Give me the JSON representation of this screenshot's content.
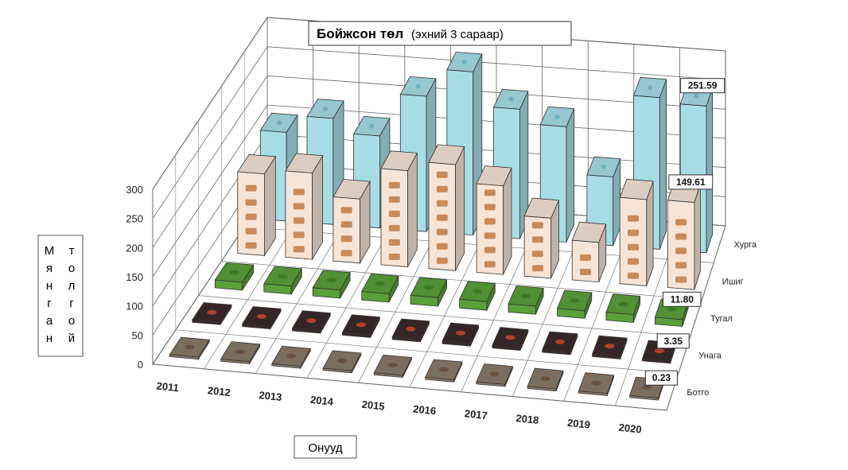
{
  "chart_data": {
    "type": "bar",
    "title": "Бойжсон төл",
    "subtitle": "(эхний 3 сараар)",
    "xlabel": "Онууд",
    "ylabel": "Мянган толгой",
    "ylabel_col1": [
      "М",
      "я",
      "н",
      "г",
      "а",
      "н"
    ],
    "ylabel_col2": [
      "т",
      "о",
      "л",
      "г",
      "о",
      "й"
    ],
    "categories": [
      "2011",
      "2012",
      "2013",
      "2014",
      "2015",
      "2016",
      "2017",
      "2018",
      "2019",
      "2020"
    ],
    "series_order_front_to_back": [
      "Ботго",
      "Унага",
      "Тугал",
      "Ишиг",
      "Хурга"
    ],
    "series": [
      {
        "name": "Ботго",
        "values": [
          0.3,
          0.3,
          0.3,
          0.3,
          0.3,
          0.3,
          0.3,
          0.3,
          0.3,
          0.23
        ],
        "color": "#8a7a6a"
      },
      {
        "name": "Унага",
        "values": [
          4.2,
          4.5,
          4.6,
          4.8,
          4.8,
          5.0,
          4.6,
          4.4,
          4.5,
          3.35
        ],
        "color": "#3a2a2a"
      },
      {
        "name": "Тугал",
        "values": [
          13.5,
          13.8,
          14.0,
          14.5,
          14.8,
          15.0,
          14.0,
          13.0,
          13.5,
          11.8
        ],
        "color": "#5aa03a"
      },
      {
        "name": "Ишиг",
        "values": [
          140,
          148,
          110,
          165,
          182,
          152,
          103,
          68,
          148,
          149.61
        ],
        "color": "#f6e4d6"
      },
      {
        "name": "Хурга",
        "values": [
          152,
          182,
          158,
          232,
          280,
          222,
          198,
          118,
          260,
          251.59
        ],
        "color": "#a8dde6"
      }
    ],
    "data_labels": [
      "251.59",
      "149.61",
      "11.80",
      "3.35",
      "0.23"
    ],
    "yticks": [
      "0",
      "50",
      "100",
      "150",
      "200",
      "250",
      "300"
    ],
    "ylim": [
      0,
      300
    ],
    "grid": true
  }
}
